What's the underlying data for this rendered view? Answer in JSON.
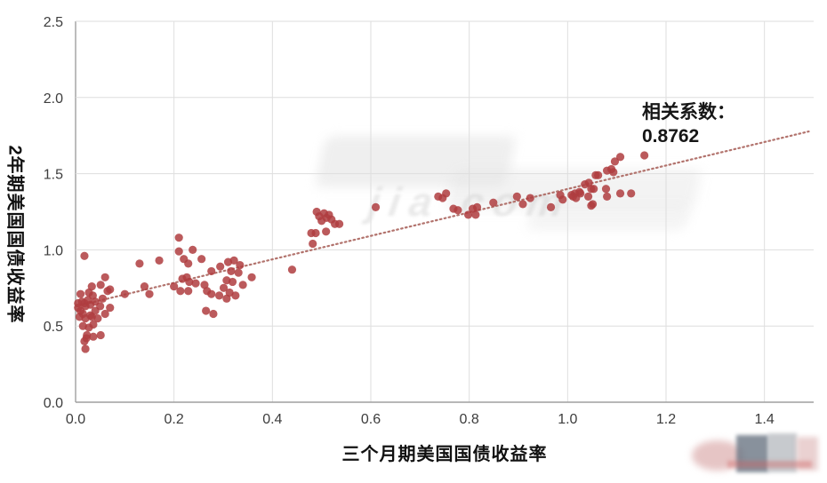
{
  "chart_data": {
    "type": "scatter",
    "xlabel": "三个月期美国国债收益率",
    "ylabel": "2年期美国国债收益率",
    "xlim": [
      0,
      1.5
    ],
    "ylim": [
      0,
      2.5
    ],
    "grid": true,
    "x_tick_values": [
      0,
      0.2,
      0.4,
      0.6,
      0.8,
      1.0,
      1.2,
      1.4
    ],
    "x_tick_labels": [
      "0.0",
      "0.2",
      "0.4",
      "0.6",
      "0.8",
      "1.0",
      "1.2",
      "1.4"
    ],
    "y_tick_values": [
      0,
      0.5,
      1.0,
      1.5,
      2.0,
      2.5
    ],
    "y_tick_labels": [
      "0.0",
      "0.5",
      "1.0",
      "1.5",
      "2.0",
      "2.5"
    ],
    "annotation": {
      "line1": "相关系数：",
      "line2": "0.8762"
    },
    "point_color": "#af3d40",
    "grid_color": "#dedede",
    "axis_color": "#9f9f9f",
    "trendline": {
      "style": "dotted",
      "color": "#b2736d",
      "x_start": 0.02,
      "y_start": 0.645,
      "x_end": 1.49,
      "y_end": 1.777
    },
    "points": [
      [
        0.005,
        0.65
      ],
      [
        0.005,
        0.62
      ],
      [
        0.008,
        0.56
      ],
      [
        0.01,
        0.71
      ],
      [
        0.01,
        0.6
      ],
      [
        0.013,
        0.66
      ],
      [
        0.015,
        0.5
      ],
      [
        0.015,
        0.58
      ],
      [
        0.018,
        0.96
      ],
      [
        0.018,
        0.65
      ],
      [
        0.018,
        0.4
      ],
      [
        0.02,
        0.55
      ],
      [
        0.02,
        0.63
      ],
      [
        0.02,
        0.35
      ],
      [
        0.022,
        0.42
      ],
      [
        0.023,
        0.44
      ],
      [
        0.025,
        0.67
      ],
      [
        0.027,
        0.72
      ],
      [
        0.027,
        0.49
      ],
      [
        0.03,
        0.64
      ],
      [
        0.03,
        0.57
      ],
      [
        0.033,
        0.76
      ],
      [
        0.033,
        0.56
      ],
      [
        0.035,
        0.7
      ],
      [
        0.036,
        0.51
      ],
      [
        0.036,
        0.43
      ],
      [
        0.04,
        0.6
      ],
      [
        0.04,
        0.66
      ],
      [
        0.045,
        0.55
      ],
      [
        0.05,
        0.63
      ],
      [
        0.051,
        0.77
      ],
      [
        0.051,
        0.44
      ],
      [
        0.055,
        0.68
      ],
      [
        0.06,
        0.82
      ],
      [
        0.06,
        0.58
      ],
      [
        0.065,
        0.73
      ],
      [
        0.07,
        0.74
      ],
      [
        0.07,
        0.62
      ],
      [
        0.1,
        0.71
      ],
      [
        0.13,
        0.91
      ],
      [
        0.14,
        0.76
      ],
      [
        0.15,
        0.71
      ],
      [
        0.17,
        0.93
      ],
      [
        0.2,
        0.76
      ],
      [
        0.21,
        0.99
      ],
      [
        0.21,
        1.08
      ],
      [
        0.213,
        0.73
      ],
      [
        0.217,
        0.81
      ],
      [
        0.22,
        0.94
      ],
      [
        0.226,
        0.82
      ],
      [
        0.229,
        0.91
      ],
      [
        0.229,
        0.73
      ],
      [
        0.231,
        0.79
      ],
      [
        0.238,
        1.0
      ],
      [
        0.244,
        0.78
      ],
      [
        0.256,
        0.94
      ],
      [
        0.262,
        0.77
      ],
      [
        0.265,
        0.6
      ],
      [
        0.267,
        0.73
      ],
      [
        0.276,
        0.86
      ],
      [
        0.276,
        0.71
      ],
      [
        0.28,
        0.58
      ],
      [
        0.292,
        0.7
      ],
      [
        0.294,
        0.89
      ],
      [
        0.301,
        0.75
      ],
      [
        0.307,
        0.8
      ],
      [
        0.307,
        0.68
      ],
      [
        0.31,
        0.92
      ],
      [
        0.313,
        0.72
      ],
      [
        0.316,
        0.86
      ],
      [
        0.319,
        0.79
      ],
      [
        0.322,
        0.93
      ],
      [
        0.325,
        0.7
      ],
      [
        0.331,
        0.85
      ],
      [
        0.334,
        0.9
      ],
      [
        0.34,
        0.77
      ],
      [
        0.358,
        0.82
      ],
      [
        0.44,
        0.87
      ],
      [
        0.479,
        1.11
      ],
      [
        0.482,
        1.04
      ],
      [
        0.488,
        1.11
      ],
      [
        0.49,
        1.25
      ],
      [
        0.495,
        1.22
      ],
      [
        0.5,
        1.19
      ],
      [
        0.505,
        1.24
      ],
      [
        0.509,
        1.12
      ],
      [
        0.51,
        1.21
      ],
      [
        0.515,
        1.23
      ],
      [
        0.52,
        1.2
      ],
      [
        0.527,
        1.17
      ],
      [
        0.536,
        1.17
      ],
      [
        0.61,
        1.28
      ],
      [
        0.737,
        1.35
      ],
      [
        0.746,
        1.34
      ],
      [
        0.753,
        1.37
      ],
      [
        0.768,
        1.27
      ],
      [
        0.777,
        1.26
      ],
      [
        0.798,
        1.23
      ],
      [
        0.807,
        1.27
      ],
      [
        0.813,
        1.23
      ],
      [
        0.816,
        1.28
      ],
      [
        0.849,
        1.31
      ],
      [
        0.897,
        1.35
      ],
      [
        0.909,
        1.3
      ],
      [
        0.924,
        1.34
      ],
      [
        0.966,
        1.28
      ],
      [
        0.985,
        1.36
      ],
      [
        0.99,
        1.33
      ],
      [
        1.008,
        1.36
      ],
      [
        1.011,
        1.35
      ],
      [
        1.015,
        1.37
      ],
      [
        1.017,
        1.34
      ],
      [
        1.024,
        1.38
      ],
      [
        1.026,
        1.37
      ],
      [
        1.035,
        1.43
      ],
      [
        1.042,
        1.35
      ],
      [
        1.043,
        1.44
      ],
      [
        1.048,
        1.4
      ],
      [
        1.048,
        1.29
      ],
      [
        1.051,
        1.3
      ],
      [
        1.053,
        1.4
      ],
      [
        1.057,
        1.49
      ],
      [
        1.062,
        1.49
      ],
      [
        1.078,
        1.4
      ],
      [
        1.08,
        1.52
      ],
      [
        1.08,
        1.35
      ],
      [
        1.089,
        1.53
      ],
      [
        1.093,
        1.51
      ],
      [
        1.096,
        1.58
      ],
      [
        1.107,
        1.61
      ],
      [
        1.107,
        1.37
      ],
      [
        1.129,
        1.37
      ],
      [
        1.156,
        1.62
      ]
    ]
  },
  "watermarks": {
    "center_ghost_text": "jia com",
    "bottom_right": "blurred-logo"
  }
}
